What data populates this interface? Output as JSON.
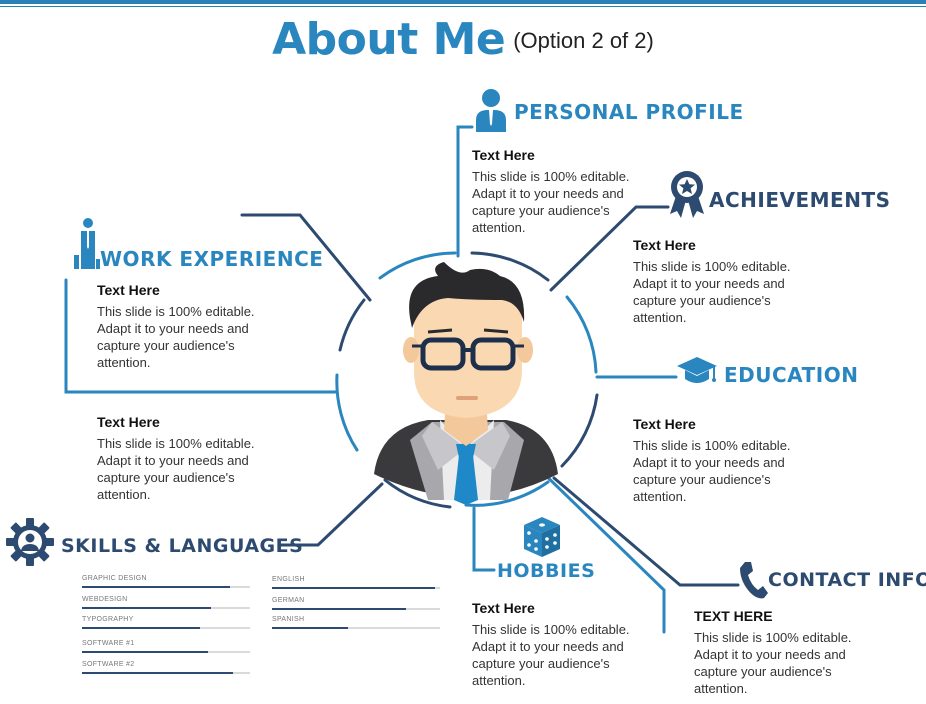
{
  "title": {
    "main": "About Me",
    "sub": "(Option 2 of 2)"
  },
  "sections": {
    "personal_profile": {
      "heading": "PERSONAL PROFILE",
      "title": "Text Here",
      "body": "This slide is 100% editable. Adapt it to your needs and capture your audience's attention."
    },
    "achievements": {
      "heading": "ACHIEVEMENTS",
      "title": "Text Here",
      "body": "This slide is 100% editable. Adapt it to your needs and capture your audience's attention."
    },
    "work_experience": {
      "heading": "WORK EXPERIENCE",
      "title": "Text Here",
      "body": "This slide is 100% editable. Adapt it to your needs and capture your audience's attention."
    },
    "education": {
      "heading": "EDUCATION",
      "title": "Text Here",
      "body": "This slide is 100% editable. Adapt it to your needs and capture your audience's attention."
    },
    "left_middle": {
      "title": "Text Here",
      "body": "This slide is 100% editable. Adapt it to your needs and capture your audience's attention."
    },
    "skills_languages": {
      "heading": "SKILLS & LANGUAGES"
    },
    "hobbies": {
      "heading": "HOBBIES",
      "title": "Text Here",
      "body": "This slide is 100% editable. Adapt it to your needs and capture your audience's attention."
    },
    "contact_info": {
      "heading": "CONTACT INFO",
      "title": "TEXT HERE",
      "body": "This slide is 100% editable. Adapt it to your needs and capture your audience's attention."
    }
  },
  "skills": [
    {
      "label": "GRAPHIC DESIGN",
      "level": 0.88
    },
    {
      "label": "WEBDESIGN",
      "level": 0.77
    },
    {
      "label": "TYPOGRAPHY",
      "level": 0.7
    },
    {
      "label": "SOFTWARE #1",
      "level": 0.75
    },
    {
      "label": "SOFTWARE #2",
      "level": 0.9
    }
  ],
  "languages": [
    {
      "label": "ENGLISH",
      "level": 0.97
    },
    {
      "label": "GERMAN",
      "level": 0.8
    },
    {
      "label": "SPANISH",
      "level": 0.45
    }
  ],
  "colors": {
    "blue": "#2a86be",
    "navy": "#2d4a70"
  },
  "icons": [
    "person-icon",
    "award-ribbon-icon",
    "worker-chart-icon",
    "graduation-cap-icon",
    "gear-person-icon",
    "dice-icon",
    "phone-icon"
  ]
}
